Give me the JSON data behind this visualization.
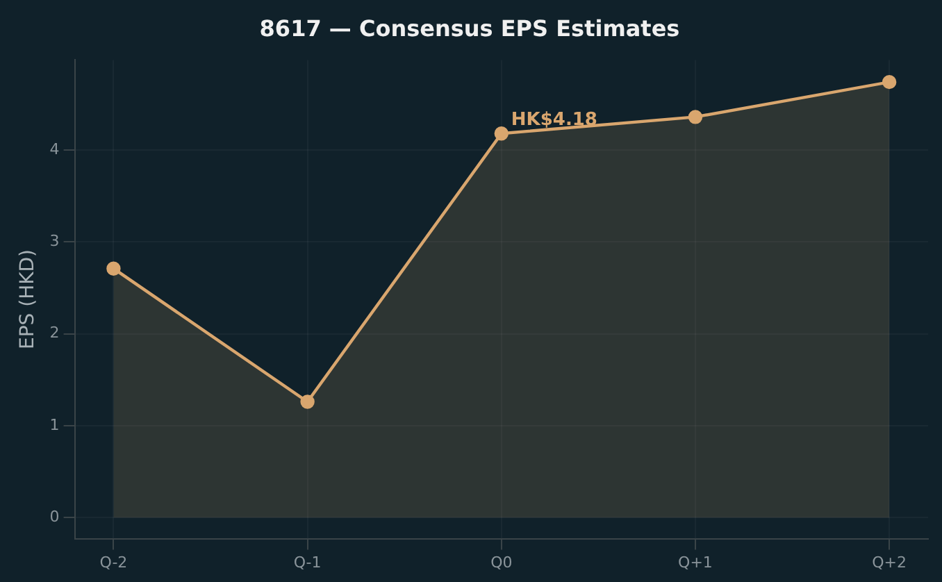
{
  "chart_data": {
    "type": "area",
    "title": "8617 — Consensus EPS Estimates",
    "ylabel": "EPS (HKD)",
    "categories": [
      "Q-2",
      "Q-1",
      "Q0",
      "Q+1",
      "Q+2"
    ],
    "series": [
      {
        "color": "#d9a66e",
        "values": [
          2.71,
          1.26,
          4.18,
          4.36,
          4.74
        ]
      }
    ],
    "ylim": [
      -0.23,
      4.98
    ],
    "yticks": [
      0,
      1,
      2,
      3,
      4
    ],
    "grid": true,
    "marker": "circle",
    "line_style": "solid",
    "annotations": [
      {
        "text": "HK$4.18",
        "x": "Q0",
        "y": 4.18
      }
    ]
  }
}
